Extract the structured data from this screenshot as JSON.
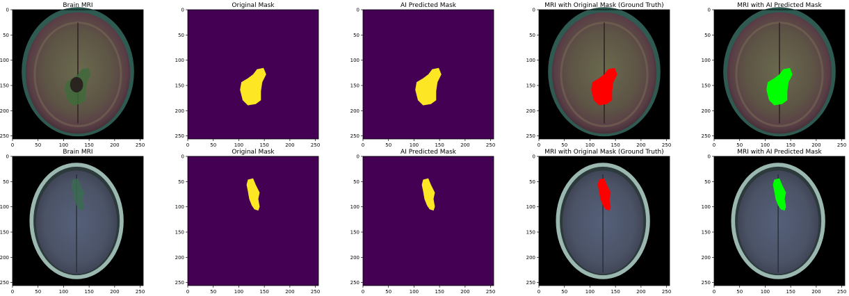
{
  "figure": {
    "rows": [
      {
        "panels": [
          {
            "title": "Brain MRI",
            "kind": "mri"
          },
          {
            "title": "Original Mask",
            "kind": "mask"
          },
          {
            "title": "AI Predicted Mask",
            "kind": "mask"
          },
          {
            "title": "MRI with Original Mask (Ground Truth)",
            "kind": "overlay",
            "overlay_color": "#ff0000"
          },
          {
            "title": "MRI with AI Predicted Mask",
            "kind": "overlay",
            "overlay_color": "#00ff00"
          }
        ]
      },
      {
        "panels": [
          {
            "title": "Brain MRI",
            "kind": "mri"
          },
          {
            "title": "Original Mask",
            "kind": "mask"
          },
          {
            "title": "AI Predicted Mask",
            "kind": "mask"
          },
          {
            "title": "MRI with Original Mask (Ground Truth)",
            "kind": "overlay",
            "overlay_color": "#ff0000"
          },
          {
            "title": "MRI with AI Predicted Mask",
            "kind": "overlay",
            "overlay_color": "#00ff00"
          }
        ]
      }
    ],
    "axis_ticks": [
      "0",
      "50",
      "100",
      "150",
      "200",
      "250"
    ],
    "axis_range": [
      0,
      256
    ],
    "colors": {
      "mask_background": "#440154",
      "mask_foreground": "#fde725",
      "mri_background": "#000000",
      "ground_truth_overlay": "#ff0000",
      "prediction_overlay": "#00ff00"
    }
  }
}
